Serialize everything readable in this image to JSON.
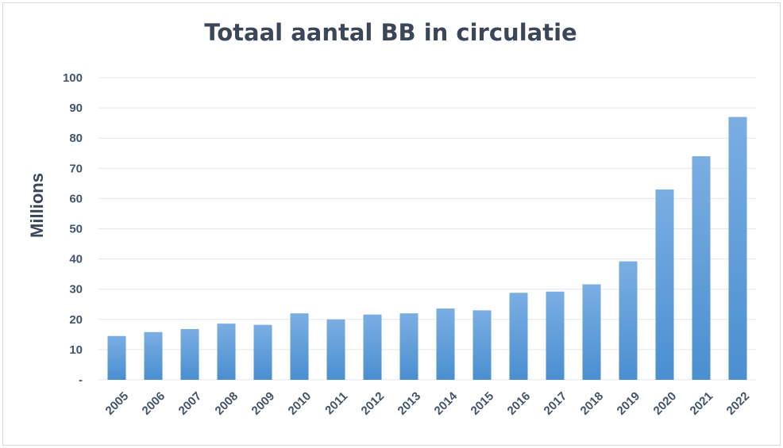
{
  "chart_data": {
    "type": "bar",
    "title": "Totaal aantal BB in circulatie",
    "xlabel": "",
    "ylabel": "Millions",
    "ylim": [
      0,
      100
    ],
    "yticks": [
      {
        "value": 0,
        "label": "-"
      },
      {
        "value": 10,
        "label": "10"
      },
      {
        "value": 20,
        "label": "20"
      },
      {
        "value": 30,
        "label": "30"
      },
      {
        "value": 40,
        "label": "40"
      },
      {
        "value": 50,
        "label": "50"
      },
      {
        "value": 60,
        "label": "60"
      },
      {
        "value": 70,
        "label": "70"
      },
      {
        "value": 80,
        "label": "80"
      },
      {
        "value": 90,
        "label": "90"
      },
      {
        "value": 100,
        "label": "100"
      }
    ],
    "grid": true,
    "legend": "none",
    "categories": [
      "2005",
      "2006",
      "2007",
      "2008",
      "2009",
      "2010",
      "2011",
      "2012",
      "2013",
      "2014",
      "2015",
      "2016",
      "2017",
      "2018",
      "2019",
      "2020",
      "2021",
      "2022"
    ],
    "values": [
      14.5,
      15.8,
      16.8,
      18.6,
      18.2,
      22,
      20,
      21.6,
      22,
      23.6,
      23,
      28.8,
      29.2,
      31.6,
      39.2,
      63,
      74,
      87
    ],
    "colors": {
      "bar_top": "#7aaee3",
      "bar_bottom": "#4a8fd0",
      "text": "#44546a",
      "title": "#3b4758"
    }
  }
}
